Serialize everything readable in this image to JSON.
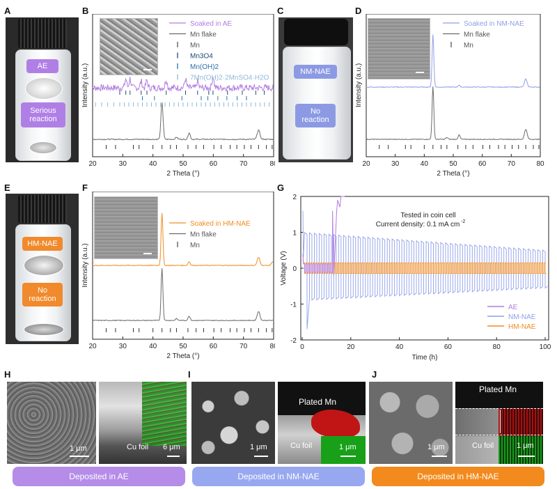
{
  "panels": {
    "A": "A",
    "B": "B",
    "C": "C",
    "D": "D",
    "E": "E",
    "F": "F",
    "G": "G",
    "H": "H",
    "I": "I",
    "J": "J"
  },
  "photoA": {
    "tag1": "AE",
    "tag2": "Serious\nreaction"
  },
  "photoC": {
    "tag1": "NM-NAE",
    "tag2": "No\nreaction"
  },
  "photoE": {
    "tag1": "HM-NAE",
    "tag2": "No\nreaction"
  },
  "xrdB": {
    "legend": [
      "Soaked in AE",
      "Mn flake",
      "Mn",
      "Mn3O4",
      "Mn(OH)2",
      "7Mn(OH)2·2MnSO4·H2O"
    ],
    "xlabel": "2 Theta (°)",
    "ylabel": "Intensity (a.u.)",
    "xticks": [
      "20",
      "30",
      "40",
      "50",
      "60",
      "70",
      "80"
    ]
  },
  "xrdD": {
    "legend": [
      "Soaked in NM-NAE",
      "Mn flake",
      "Mn"
    ],
    "xlabel": "2 Theta (°)",
    "ylabel": "Intensity (a.u.)",
    "xticks": [
      "20",
      "30",
      "40",
      "50",
      "60",
      "70",
      "80"
    ]
  },
  "xrdF": {
    "legend": [
      "Soaked in HM-NAE",
      "Mn flake",
      "Mn"
    ],
    "xlabel": "2 Theta (°)",
    "ylabel": "Intensity (a.u.)",
    "xticks": [
      "20",
      "30",
      "40",
      "50",
      "60",
      "70",
      "80"
    ]
  },
  "voltageG": {
    "annot1": "Tested in coin cell",
    "annot2": "Current density: 0.1 mA cm",
    "annot2sup": "-2",
    "xlabel": "Time (h)",
    "ylabel": "Voltage (V)",
    "xticks": [
      "0",
      "20",
      "40",
      "60",
      "80",
      "100"
    ],
    "yticks": [
      "2",
      "1",
      "0",
      "-1",
      "-2"
    ],
    "legend": [
      "AE",
      "NM-NAE",
      "HM-NAE"
    ]
  },
  "semH": {
    "scale1": "1 μm",
    "label2": "Cu foil",
    "scale2": "6 μm"
  },
  "semI": {
    "scale1": "1 μm",
    "label2a": "Plated Mn",
    "label2b": "Cu foil",
    "scale2": "1 μm"
  },
  "semJ": {
    "scale1": "1 μm",
    "label2a": "Plated Mn",
    "label2b": "Cu foil",
    "scale2": "1 μm"
  },
  "banners": [
    "Deposited in AE",
    "Deposited in NM-NAE",
    "Deposited in HM-NAE"
  ],
  "colors": {
    "ae": "#b27be0",
    "nm": "#8f9fe8",
    "hm": "#f28a1e",
    "flake": "#6a6a6a",
    "banner_ae": "#b58ce8",
    "banner_nm": "#98a8f0",
    "banner_hm": "#f28a1e"
  },
  "chart_data": [
    {
      "panel": "B",
      "type": "line",
      "xlabel": "2 Theta (°)",
      "ylabel": "Intensity (a.u.)",
      "xlim": [
        20,
        80
      ],
      "series": [
        {
          "name": "Soaked in AE",
          "peaks": [
            31.0,
            32.4,
            36.1,
            38.0,
            44.4,
            50.8,
            54.8,
            59.9
          ]
        },
        {
          "name": "Mn flake",
          "peaks": [
            43.0,
            47.8,
            52.0,
            75.0
          ]
        }
      ],
      "reference_sticks": {
        "Mn": [
          24.5,
          27.6,
          33.5,
          35.4,
          40.0,
          43.0,
          45.8,
          47.8,
          51.6,
          54.3,
          56.8,
          60.2,
          62.6,
          65.6,
          67.8,
          70.3,
          72.5,
          75.0,
          77.6,
          79.5
        ],
        "Mn3O4": [
          29.0,
          31.0,
          32.4,
          36.1,
          38.0,
          44.4,
          50.8,
          54.8,
          58.5,
          59.9,
          64.7,
          69.6,
          74.1,
          76.9
        ],
        "Mn(OH)2": [
          18.9,
          36.5,
          49.6,
          58.2,
          64.5,
          67.9
        ]
      }
    },
    {
      "panel": "D",
      "type": "line",
      "xlabel": "2 Theta (°)",
      "ylabel": "Intensity (a.u.)",
      "xlim": [
        20,
        80
      ],
      "series": [
        {
          "name": "Soaked in NM-NAE",
          "peaks": [
            43.0,
            52.0,
            75.0
          ]
        },
        {
          "name": "Mn flake",
          "peaks": [
            43.0,
            47.8,
            52.0,
            75.0
          ]
        }
      ]
    },
    {
      "panel": "F",
      "type": "line",
      "xlabel": "2 Theta (°)",
      "ylabel": "Intensity (a.u.)",
      "xlim": [
        20,
        80
      ],
      "series": [
        {
          "name": "Soaked in HM-NAE",
          "peaks": [
            43.0,
            52.0,
            75.0
          ]
        },
        {
          "name": "Mn flake",
          "peaks": [
            43.0,
            47.8,
            52.0,
            75.0
          ]
        }
      ]
    },
    {
      "panel": "G",
      "type": "line",
      "xlabel": "Time (h)",
      "ylabel": "Voltage (V)",
      "xlim": [
        0,
        100
      ],
      "ylim": [
        -2,
        2
      ],
      "series": [
        {
          "name": "AE",
          "note": "fails near 12–18 h, voltage rises to 2 V"
        },
        {
          "name": "NM-NAE",
          "amplitude_start": 1.0,
          "amplitude_end": 0.5
        },
        {
          "name": "HM-NAE",
          "amplitude": 0.15
        }
      ]
    }
  ]
}
